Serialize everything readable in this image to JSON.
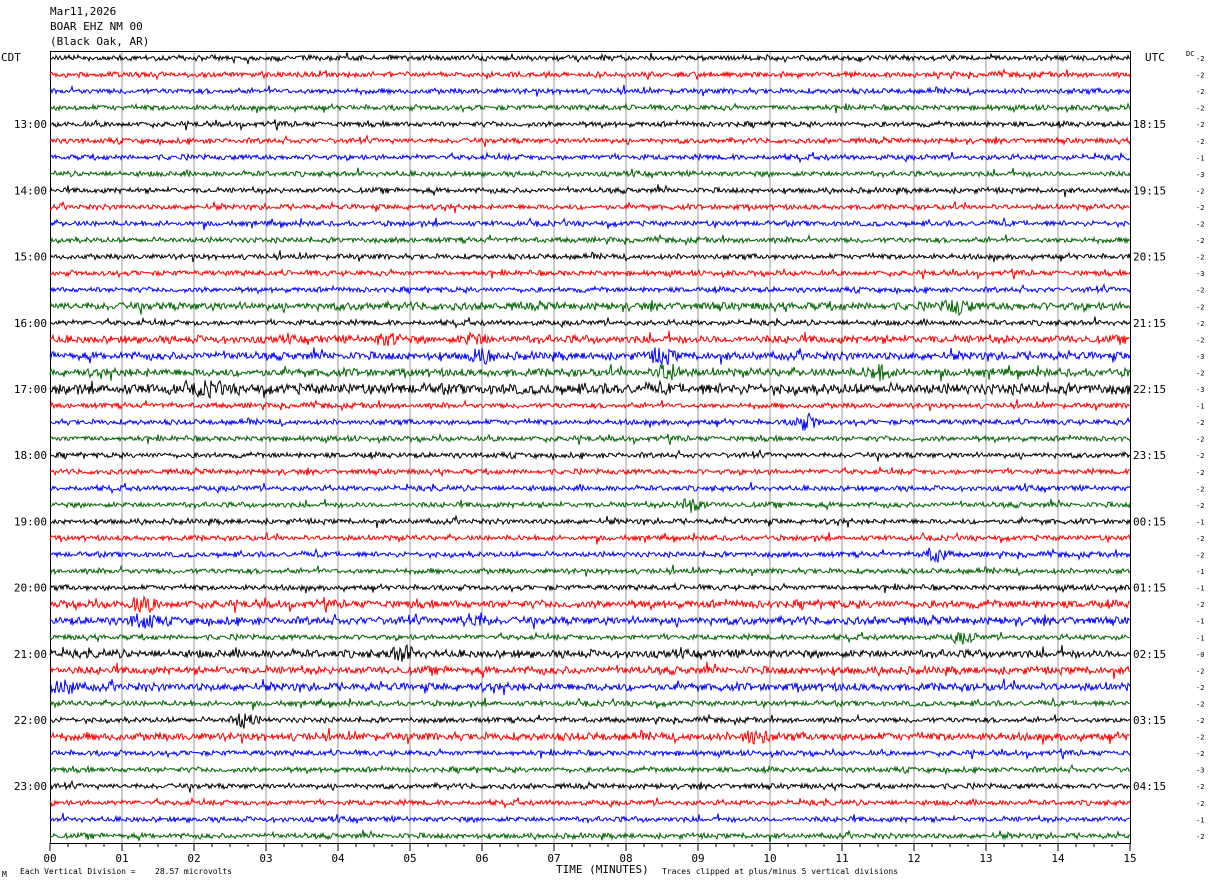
{
  "header": {
    "date": "Mar11,2026",
    "station": "BOAR EHZ NM 00",
    "location": "(Black Oak, AR)"
  },
  "chart_data": {
    "type": "line",
    "title": "Mar11,2026 BOAR EHZ NM 00 (Black Oak, AR)",
    "left_axis_label": "CDT",
    "right_axis_label": "UTC",
    "dc_label": "DC",
    "xlabel": "TIME (MINUTES)",
    "xlim": [
      0,
      15
    ],
    "x_ticks": [
      "00",
      "01",
      "02",
      "03",
      "04",
      "05",
      "06",
      "07",
      "08",
      "09",
      "10",
      "11",
      "12",
      "13",
      "14",
      "15"
    ],
    "left_hour_labels": [
      "13:00",
      "14:00",
      "15:00",
      "16:00",
      "17:00",
      "18:00",
      "19:00",
      "20:00",
      "21:00",
      "22:00",
      "23:00"
    ],
    "right_hour_labels": [
      "18:15",
      "19:15",
      "20:15",
      "21:15",
      "22:15",
      "23:15",
      "00:15",
      "01:15",
      "02:15",
      "03:15",
      "04:15"
    ],
    "trace_colors": [
      "#000000",
      "#ff0000",
      "#0000ff",
      "#006400"
    ],
    "trace_count": 48,
    "dc_offsets": [
      "-2",
      "-2",
      "-2",
      "-2",
      "-2",
      "-2",
      "-1",
      "-3",
      "-2",
      "-2",
      "-2",
      "-2",
      "-2",
      "-3",
      "-2",
      "-2",
      "-2",
      "-2",
      "-3",
      "-2",
      "-3",
      "-1",
      "-2",
      "-2",
      "-2",
      "-2",
      "-2",
      "-2",
      "-1",
      "-2",
      "-2",
      "-1",
      "-1",
      "-2",
      "-1",
      "-1",
      "-0",
      "-2",
      "-2",
      "-2",
      "-2",
      "-2",
      "-2",
      "-3",
      "-2",
      "-2",
      "-1",
      "-2"
    ],
    "amplitude_levels": [
      2,
      2,
      2,
      2,
      2,
      2,
      2,
      2,
      2,
      2,
      2,
      2,
      2,
      2,
      2,
      3,
      2,
      3,
      3,
      3,
      4,
      2,
      2,
      2,
      2,
      2,
      2,
      2,
      2,
      2,
      2,
      2,
      2,
      3,
      3,
      2,
      3,
      3,
      3,
      2,
      2,
      3,
      2,
      2,
      2,
      2,
      2,
      2
    ],
    "events": [
      {
        "trace": 15,
        "minute": 12.6,
        "strength": 3
      },
      {
        "trace": 17,
        "minute": 4.7,
        "strength": 2
      },
      {
        "trace": 17,
        "minute": 5.9,
        "strength": 2
      },
      {
        "trace": 18,
        "minute": 6.0,
        "strength": 3
      },
      {
        "trace": 18,
        "minute": 8.5,
        "strength": 3
      },
      {
        "trace": 19,
        "minute": 8.6,
        "strength": 4
      },
      {
        "trace": 19,
        "minute": 11.5,
        "strength": 3
      },
      {
        "trace": 20,
        "minute": 2.2,
        "strength": 3
      },
      {
        "trace": 22,
        "minute": 10.5,
        "strength": 3
      },
      {
        "trace": 27,
        "minute": 8.9,
        "strength": 3
      },
      {
        "trace": 30,
        "minute": 12.3,
        "strength": 3
      },
      {
        "trace": 33,
        "minute": 1.3,
        "strength": 3
      },
      {
        "trace": 34,
        "minute": 1.3,
        "strength": 3
      },
      {
        "trace": 34,
        "minute": 5.9,
        "strength": 3
      },
      {
        "trace": 35,
        "minute": 12.7,
        "strength": 2
      },
      {
        "trace": 36,
        "minute": 4.9,
        "strength": 3
      },
      {
        "trace": 38,
        "minute": 0.2,
        "strength": 3
      },
      {
        "trace": 40,
        "minute": 2.7,
        "strength": 3
      },
      {
        "trace": 41,
        "minute": 9.8,
        "strength": 3
      }
    ]
  },
  "footer": {
    "scale_left": "Each Vertical Division =",
    "scale_value": "28.57 microvolts",
    "clip_note": "Traces clipped at plus/minus 5 vertical divisions",
    "corner_mark": "M"
  }
}
